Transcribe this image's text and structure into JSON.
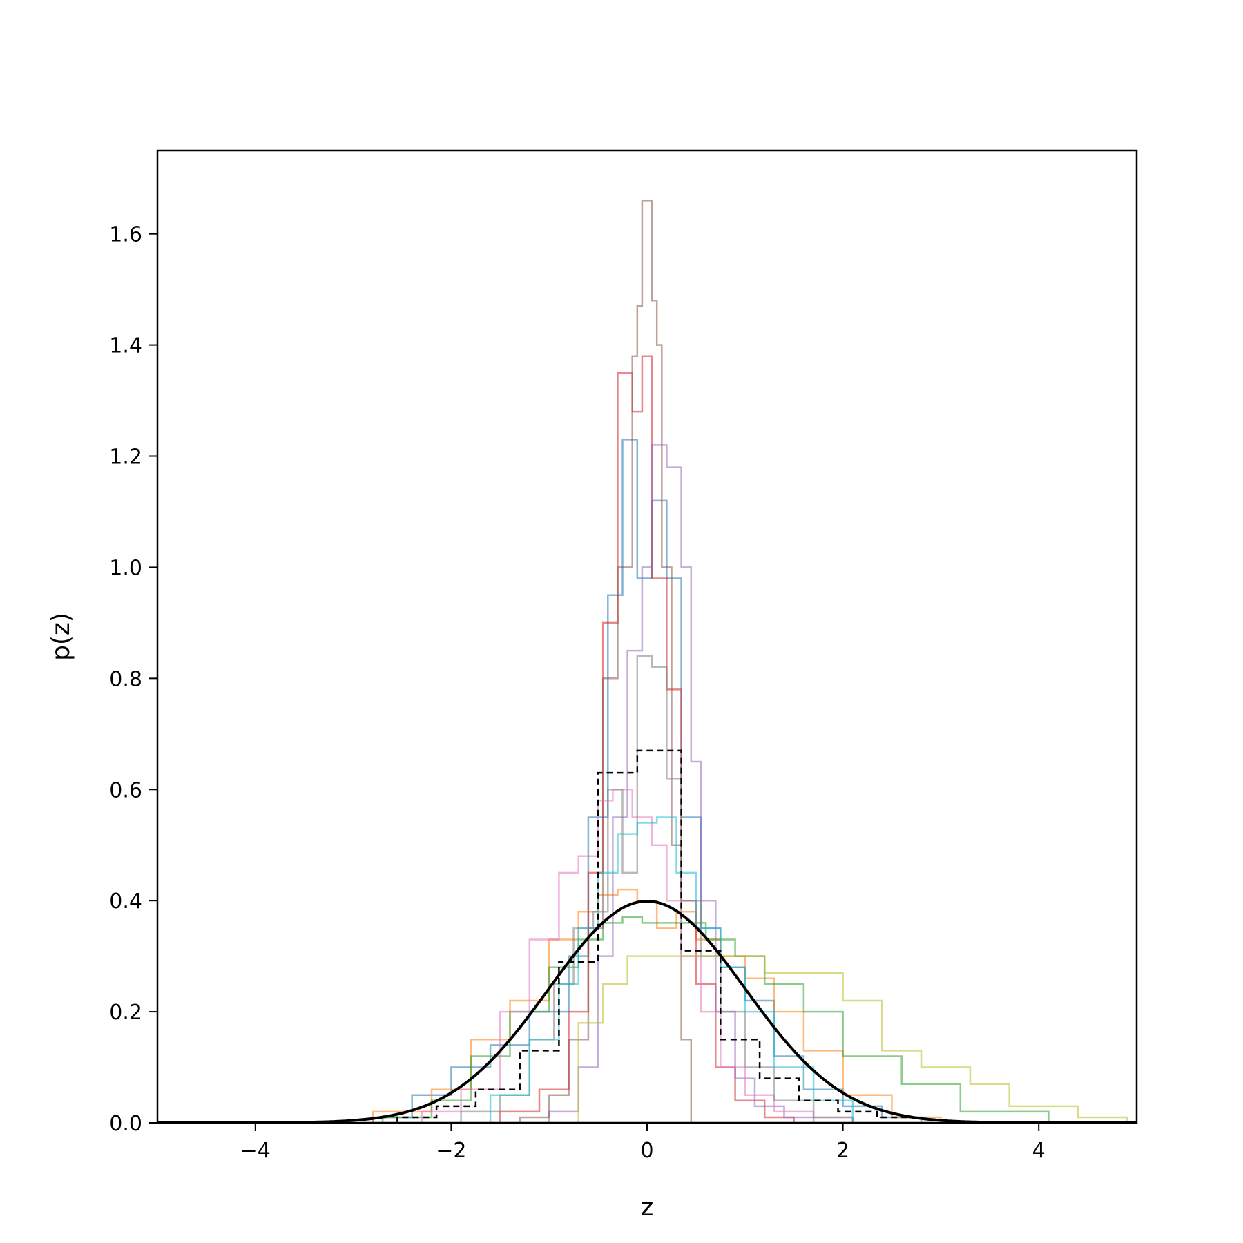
{
  "chart_data": {
    "type": "line",
    "xlabel": "z",
    "ylabel": "p(z)",
    "xlim": [
      -5,
      5
    ],
    "ylim": [
      0,
      1.75
    ],
    "xticks": [
      -4,
      -2,
      0,
      2,
      4
    ],
    "xtick_labels": [
      "−4",
      "−2",
      "0",
      "2",
      "4"
    ],
    "yticks": [
      0.0,
      0.2,
      0.4,
      0.6,
      0.8,
      1.0,
      1.2,
      1.4,
      1.6
    ],
    "ytick_labels": [
      "0.0",
      "0.2",
      "0.4",
      "0.6",
      "0.8",
      "1.0",
      "1.2",
      "1.4",
      "1.6"
    ],
    "grid": false,
    "legend": false,
    "step_series": [
      {
        "color": "#1f77b4",
        "alpha": 0.55,
        "edges": [
          -2.8,
          -2.4,
          -2.0,
          -1.6,
          -1.2,
          -0.8,
          -0.6,
          -0.4,
          -0.25,
          -0.1,
          0.05,
          0.2,
          0.35,
          0.55,
          0.75,
          1.0,
          1.3,
          1.6,
          2.0,
          2.4,
          2.8
        ],
        "counts": [
          0.01,
          0.05,
          0.1,
          0.14,
          0.2,
          0.3,
          0.55,
          0.95,
          1.23,
          0.98,
          1.12,
          0.98,
          0.55,
          0.35,
          0.28,
          0.22,
          0.12,
          0.06,
          0.03,
          0.01
        ]
      },
      {
        "color": "#ff7f0e",
        "alpha": 0.55,
        "edges": [
          -2.8,
          -2.2,
          -1.8,
          -1.4,
          -1.0,
          -0.7,
          -0.5,
          -0.3,
          -0.1,
          0.1,
          0.3,
          0.5,
          0.75,
          1.0,
          1.3,
          1.6,
          2.0,
          2.5,
          3.0
        ],
        "counts": [
          0.02,
          0.06,
          0.15,
          0.22,
          0.33,
          0.38,
          0.41,
          0.42,
          0.4,
          0.35,
          0.38,
          0.33,
          0.3,
          0.26,
          0.2,
          0.13,
          0.05,
          0.01
        ]
      },
      {
        "color": "#2ca02c",
        "alpha": 0.55,
        "edges": [
          -2.7,
          -2.2,
          -1.8,
          -1.4,
          -1.0,
          -0.7,
          -0.45,
          -0.25,
          -0.05,
          0.15,
          0.35,
          0.6,
          0.9,
          1.2,
          1.6,
          2.0,
          2.6,
          3.2,
          4.1
        ],
        "counts": [
          0.01,
          0.04,
          0.12,
          0.2,
          0.28,
          0.33,
          0.36,
          0.37,
          0.36,
          0.36,
          0.36,
          0.33,
          0.3,
          0.25,
          0.2,
          0.12,
          0.07,
          0.02
        ]
      },
      {
        "color": "#d62728",
        "alpha": 0.55,
        "edges": [
          -1.5,
          -1.1,
          -0.8,
          -0.6,
          -0.45,
          -0.3,
          -0.15,
          -0.05,
          0.05,
          0.2,
          0.35,
          0.5,
          0.7,
          0.9,
          1.2,
          1.5
        ],
        "counts": [
          0.02,
          0.06,
          0.2,
          0.45,
          0.9,
          1.35,
          1.28,
          1.38,
          0.98,
          0.78,
          0.4,
          0.25,
          0.1,
          0.04,
          0.01
        ]
      },
      {
        "color": "#9467bd",
        "alpha": 0.55,
        "edges": [
          -1.0,
          -0.7,
          -0.5,
          -0.35,
          -0.2,
          -0.05,
          0.05,
          0.2,
          0.35,
          0.45,
          0.55,
          0.7,
          0.9,
          1.1,
          1.4,
          1.7
        ],
        "counts": [
          0.02,
          0.1,
          0.3,
          0.55,
          0.85,
          1.0,
          1.22,
          1.18,
          1.0,
          0.65,
          0.4,
          0.2,
          0.08,
          0.03,
          0.01
        ]
      },
      {
        "color": "#8c564b",
        "alpha": 0.55,
        "edges": [
          -1.3,
          -1.0,
          -0.8,
          -0.6,
          -0.45,
          -0.3,
          -0.15,
          -0.1,
          -0.05,
          0.05,
          0.1,
          0.15,
          0.25,
          0.35,
          0.45
        ],
        "counts": [
          0.01,
          0.05,
          0.15,
          0.35,
          0.8,
          1.0,
          1.38,
          1.47,
          1.66,
          1.48,
          1.4,
          1.0,
          0.5,
          0.15
        ]
      },
      {
        "color": "#e377c2",
        "alpha": 0.55,
        "edges": [
          -2.3,
          -1.9,
          -1.5,
          -1.2,
          -0.9,
          -0.7,
          -0.5,
          -0.35,
          -0.15,
          0.05,
          0.2,
          0.35,
          0.55,
          0.75,
          1.0,
          1.3,
          1.7,
          2.1
        ],
        "counts": [
          0.02,
          0.06,
          0.2,
          0.33,
          0.45,
          0.48,
          0.58,
          0.6,
          0.55,
          0.5,
          0.4,
          0.3,
          0.2,
          0.1,
          0.05,
          0.02,
          0.01
        ]
      },
      {
        "color": "#7f7f7f",
        "alpha": 0.55,
        "edges": [
          -1.9,
          -1.5,
          -1.2,
          -0.95,
          -0.75,
          -0.55,
          -0.4,
          -0.25,
          -0.1,
          0.05,
          0.2,
          0.35,
          0.55,
          0.75,
          1.0,
          1.3,
          1.7,
          2.1
        ],
        "counts": [
          0.02,
          0.05,
          0.15,
          0.25,
          0.35,
          0.38,
          0.6,
          0.45,
          0.84,
          0.82,
          0.62,
          0.4,
          0.3,
          0.2,
          0.1,
          0.04,
          0.01
        ]
      },
      {
        "color": "#bcbd22",
        "alpha": 0.55,
        "edges": [
          -0.7,
          -0.45,
          -0.2,
          0.0,
          0.3,
          0.7,
          1.2,
          2.0,
          2.4,
          2.8,
          3.3,
          3.7,
          4.4,
          4.9
        ],
        "counts": [
          0.18,
          0.25,
          0.3,
          0.3,
          0.3,
          0.3,
          0.27,
          0.22,
          0.13,
          0.1,
          0.07,
          0.03,
          0.01
        ]
      },
      {
        "color": "#17becf",
        "alpha": 0.55,
        "edges": [
          -1.6,
          -1.2,
          -0.9,
          -0.7,
          -0.5,
          -0.3,
          -0.1,
          0.1,
          0.3,
          0.5,
          0.75,
          1.0,
          1.3,
          1.7,
          2.1
        ],
        "counts": [
          0.05,
          0.15,
          0.25,
          0.35,
          0.45,
          0.52,
          0.54,
          0.55,
          0.45,
          0.35,
          0.28,
          0.2,
          0.1,
          0.04
        ]
      }
    ],
    "dashed_hist": {
      "color": "#000000",
      "edges": [
        -2.55,
        -2.15,
        -1.75,
        -1.3,
        -0.9,
        -0.5,
        -0.1,
        0.35,
        0.75,
        1.15,
        1.55,
        1.95,
        2.35,
        2.75
      ],
      "counts": [
        0.01,
        0.03,
        0.06,
        0.13,
        0.29,
        0.63,
        0.67,
        0.31,
        0.15,
        0.08,
        0.04,
        0.02,
        0.01
      ]
    },
    "curve": {
      "color": "#000000",
      "type": "standard-normal-pdf",
      "mean": 0,
      "std": 1,
      "peak": 0.399
    }
  }
}
